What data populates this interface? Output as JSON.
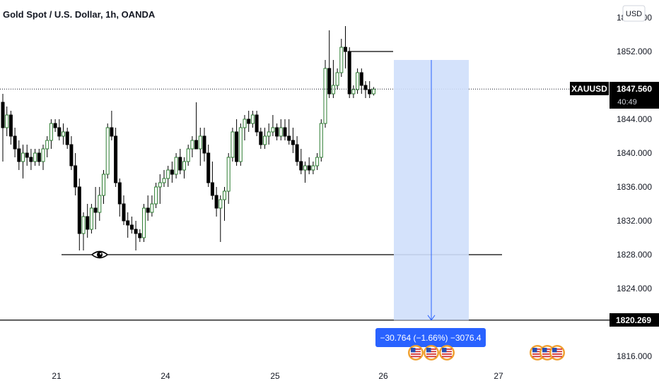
{
  "title": "Gold Spot / U.S. Dollar, 1h, OANDA",
  "currency_button": "USD",
  "symbol_label": "XAUUSD",
  "last_price_label": "1847.560",
  "countdown_label": "40:49",
  "target_price_label": "1820.269",
  "measure_label": "−30.764 (−1.66%) −3076.4",
  "colors": {
    "up_fill": "#ffffff",
    "up_border": "#2e7d32",
    "down_fill": "#000000",
    "wick": "#000000",
    "measure_fill": "#cfdffb",
    "measure_line": "#2962ff",
    "measure_label_bg": "#2962ff"
  },
  "icons": [
    "eye-icon",
    "us-flag-event-icon"
  ],
  "chart_data": {
    "type": "candlestick",
    "title": "Gold Spot / U.S. Dollar, 1h, OANDA",
    "ylim": [
      1813,
      1858
    ],
    "y_ticks": [
      "1816.000",
      "1820.000",
      "1824.000",
      "1828.000",
      "1832.000",
      "1836.000",
      "1840.000",
      "1844.000",
      "1848.000",
      "1852.000",
      "1856.000"
    ],
    "x_ticks": [
      "21",
      "24",
      "25",
      "26",
      "27"
    ],
    "ohlc": [
      [
        1846,
        1847,
        1839,
        1843
      ],
      [
        1843,
        1845.5,
        1842,
        1844.5
      ],
      [
        1844.5,
        1845,
        1841,
        1842
      ],
      [
        1842,
        1843,
        1839.5,
        1840.5
      ],
      [
        1840.5,
        1841.5,
        1838,
        1839
      ],
      [
        1839,
        1841,
        1837,
        1840
      ],
      [
        1840,
        1841,
        1838.5,
        1839.5
      ],
      [
        1839.5,
        1840.5,
        1838,
        1839
      ],
      [
        1839,
        1840.5,
        1838.5,
        1840
      ],
      [
        1840,
        1840.5,
        1838.5,
        1839
      ],
      [
        1839,
        1841,
        1838,
        1840.5
      ],
      [
        1840.5,
        1842,
        1839.5,
        1841.5
      ],
      [
        1841.5,
        1844,
        1840.5,
        1843.5
      ],
      [
        1843.5,
        1844,
        1842.5,
        1843
      ],
      [
        1843,
        1844,
        1841.5,
        1842
      ],
      [
        1842,
        1843.5,
        1841,
        1842.5
      ],
      [
        1842.5,
        1843,
        1840.5,
        1841
      ],
      [
        1841,
        1842,
        1838,
        1838.5
      ],
      [
        1838.5,
        1840,
        1835,
        1836
      ],
      [
        1836,
        1837,
        1828.5,
        1830.5
      ],
      [
        1830.5,
        1833,
        1828.5,
        1832.5
      ],
      [
        1832.5,
        1834,
        1830,
        1831
      ],
      [
        1831,
        1834,
        1830.5,
        1833.5
      ],
      [
        1833.5,
        1836,
        1831,
        1833
      ],
      [
        1833,
        1836,
        1832,
        1835
      ],
      [
        1835,
        1838,
        1834,
        1837.5
      ],
      [
        1837.5,
        1843.5,
        1837,
        1843
      ],
      [
        1843,
        1845,
        1841.5,
        1842
      ],
      [
        1842,
        1843,
        1836,
        1836.5
      ],
      [
        1836.5,
        1837,
        1832.5,
        1834
      ],
      [
        1834,
        1835,
        1831.5,
        1832
      ],
      [
        1832,
        1833,
        1830,
        1831.5
      ],
      [
        1831.5,
        1832.5,
        1830.5,
        1831
      ],
      [
        1831,
        1832,
        1828.5,
        1830.5
      ],
      [
        1830.5,
        1831,
        1829.5,
        1830
      ],
      [
        1830,
        1834,
        1829.5,
        1833.5
      ],
      [
        1833.5,
        1835,
        1832,
        1833
      ],
      [
        1833,
        1835,
        1832.5,
        1834
      ],
      [
        1834,
        1836.5,
        1833.5,
        1836
      ],
      [
        1836,
        1837.5,
        1834,
        1836.5
      ],
      [
        1836.5,
        1838,
        1836,
        1837
      ],
      [
        1837,
        1838.5,
        1836,
        1838
      ],
      [
        1838,
        1839,
        1836.5,
        1837.5
      ],
      [
        1837.5,
        1840,
        1837,
        1839.5
      ],
      [
        1839.5,
        1840.5,
        1837.5,
        1838
      ],
      [
        1838,
        1839.5,
        1837,
        1839
      ],
      [
        1839,
        1841,
        1838.5,
        1840.5
      ],
      [
        1840.5,
        1842,
        1839.5,
        1841.5
      ],
      [
        1841.5,
        1846,
        1840.5,
        1840.5
      ],
      [
        1840.5,
        1843,
        1838.5,
        1842
      ],
      [
        1842,
        1843,
        1839,
        1840
      ],
      [
        1840,
        1841,
        1836,
        1836.5
      ],
      [
        1836.5,
        1839,
        1834.5,
        1835
      ],
      [
        1835,
        1836,
        1832.5,
        1833.5
      ],
      [
        1833.5,
        1835,
        1829.5,
        1834.5
      ],
      [
        1834.5,
        1836,
        1832,
        1835.5
      ],
      [
        1835.5,
        1840,
        1834,
        1839.5
      ],
      [
        1839.5,
        1843,
        1839,
        1842.5
      ],
      [
        1842.5,
        1844,
        1838.5,
        1839
      ],
      [
        1839,
        1843.5,
        1838.5,
        1843
      ],
      [
        1843,
        1844.5,
        1841.5,
        1844
      ],
      [
        1844,
        1845,
        1842.5,
        1843.5
      ],
      [
        1843.5,
        1845,
        1843,
        1844.5
      ],
      [
        1844.5,
        1845,
        1842,
        1842.5
      ],
      [
        1842.5,
        1843,
        1840.5,
        1841
      ],
      [
        1841,
        1843,
        1840.5,
        1842
      ],
      [
        1842,
        1843.5,
        1841,
        1842.5
      ],
      [
        1842.5,
        1844.5,
        1842,
        1843
      ],
      [
        1843,
        1843.5,
        1841.5,
        1842
      ],
      [
        1842,
        1844,
        1841.5,
        1843
      ],
      [
        1843,
        1844,
        1841.5,
        1842
      ],
      [
        1842,
        1844,
        1841,
        1841.5
      ],
      [
        1841.5,
        1843,
        1840,
        1841
      ],
      [
        1841,
        1842,
        1838.5,
        1839
      ],
      [
        1839,
        1840.5,
        1837.5,
        1838
      ],
      [
        1838,
        1839,
        1836.5,
        1838.5
      ],
      [
        1838.5,
        1839.5,
        1837.5,
        1838
      ],
      [
        1838,
        1839,
        1837.5,
        1838.5
      ],
      [
        1838.5,
        1840,
        1838,
        1839.5
      ],
      [
        1839.5,
        1844,
        1839,
        1843.5
      ],
      [
        1843.5,
        1851,
        1843,
        1850
      ],
      [
        1850,
        1854.5,
        1846.5,
        1847
      ],
      [
        1847,
        1851,
        1846.5,
        1848
      ],
      [
        1848,
        1850,
        1847.5,
        1849.5
      ],
      [
        1849.5,
        1853.5,
        1849,
        1852.5
      ],
      [
        1852.5,
        1855,
        1850,
        1852
      ],
      [
        1852,
        1852.5,
        1846.5,
        1847
      ],
      [
        1847,
        1848,
        1846.5,
        1847.5
      ],
      [
        1847.5,
        1850,
        1847,
        1849.5
      ],
      [
        1849.5,
        1850,
        1847,
        1848
      ],
      [
        1848,
        1848.5,
        1846.5,
        1847.5
      ],
      [
        1847.5,
        1848.5,
        1846.5,
        1847
      ],
      [
        1847,
        1847.8,
        1846.8,
        1847.56
      ]
    ],
    "support_level": 1828.0,
    "resistance_level": 1852.0,
    "current_price": 1847.56,
    "target_price": 1820.269,
    "measure_from": 1851.0,
    "measure_to": 1820.269,
    "measure_change": -30.764,
    "measure_change_pct": -1.66,
    "measure_points": -3076.4,
    "event_markers": {
      "group1": 3,
      "group2": 3
    }
  }
}
